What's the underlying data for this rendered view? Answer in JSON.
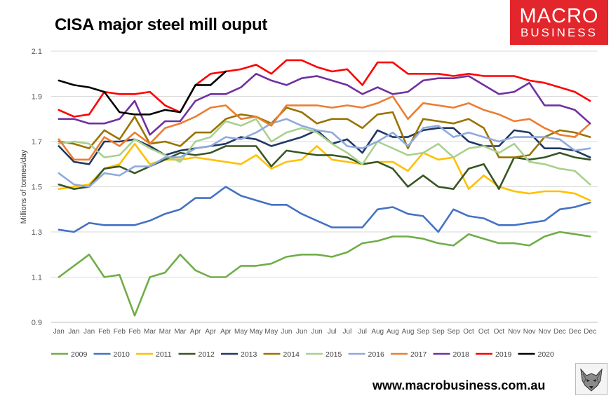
{
  "brand": {
    "line1": "MACRO",
    "line2": "BUSINESS",
    "color": "#e3262c",
    "website": "www.macrobusiness.com.au"
  },
  "wolf_logo": "wolf-icon",
  "chart_data": {
    "type": "line",
    "title": "CISA major steel mill ouput",
    "xlabel": "",
    "ylabel": "Millions of tonnes/day",
    "ylim": [
      0.9,
      2.1
    ],
    "yticks": [
      0.9,
      1.1,
      1.3,
      1.5,
      1.7,
      1.9,
      2.1
    ],
    "ytick_labels": [
      "0.9",
      "1.1",
      "1.3",
      "1.5",
      "1.7",
      "1.9",
      "2.1"
    ],
    "grid": true,
    "legend_position": "bottom",
    "categories": [
      "Jan",
      "Jan",
      "Jan",
      "Feb",
      "Feb",
      "Feb",
      "Mar",
      "Mar",
      "Mar",
      "Apr",
      "Apr",
      "Apr",
      "May",
      "May",
      "May",
      "Jun",
      "Jun",
      "Jun",
      "Jul",
      "Jul",
      "Jul",
      "Aug",
      "Aug",
      "Aug",
      "Sep",
      "Sep",
      "Sep",
      "Oct",
      "Oct",
      "Oct",
      "Nov",
      "Nov",
      "Nov",
      "Dec",
      "Dec",
      "Dec"
    ],
    "series": [
      {
        "name": "2009",
        "color": "#70ad47",
        "values": [
          1.1,
          1.15,
          1.2,
          1.1,
          1.11,
          0.93,
          1.1,
          1.12,
          1.2,
          1.13,
          1.1,
          1.1,
          1.15,
          1.15,
          1.16,
          1.19,
          1.2,
          1.2,
          1.19,
          1.21,
          1.25,
          1.26,
          1.28,
          1.28,
          1.27,
          1.25,
          1.24,
          1.29,
          1.27,
          1.25,
          1.25,
          1.24,
          1.28,
          1.3,
          1.29,
          1.28
        ]
      },
      {
        "name": "2010",
        "color": "#4472c4",
        "values": [
          1.31,
          1.3,
          1.34,
          1.33,
          1.33,
          1.33,
          1.35,
          1.38,
          1.4,
          1.45,
          1.45,
          1.5,
          1.46,
          1.44,
          1.42,
          1.42,
          1.38,
          1.35,
          1.32,
          1.32,
          1.32,
          1.4,
          1.41,
          1.38,
          1.37,
          1.3,
          1.4,
          1.37,
          1.36,
          1.33,
          1.33,
          1.34,
          1.35,
          1.4,
          1.41,
          1.43
        ]
      },
      {
        "name": "2011",
        "color": "#ffc000",
        "values": [
          1.49,
          1.5,
          1.51,
          1.58,
          1.6,
          1.69,
          1.6,
          1.62,
          1.62,
          1.63,
          1.62,
          1.61,
          1.6,
          1.64,
          1.58,
          1.61,
          1.62,
          1.68,
          1.62,
          1.61,
          1.6,
          1.61,
          1.61,
          1.57,
          1.65,
          1.62,
          1.63,
          1.49,
          1.55,
          1.5,
          1.48,
          1.47,
          1.48,
          1.48,
          1.47,
          1.44
        ]
      },
      {
        "name": "2012",
        "color": "#375623",
        "values": [
          1.51,
          1.49,
          1.5,
          1.58,
          1.59,
          1.56,
          1.59,
          1.62,
          1.65,
          1.64,
          1.65,
          1.68,
          1.68,
          1.68,
          1.59,
          1.66,
          1.65,
          1.64,
          1.64,
          1.63,
          1.6,
          1.61,
          1.58,
          1.5,
          1.55,
          1.5,
          1.49,
          1.58,
          1.6,
          1.49,
          1.63,
          1.62,
          1.63,
          1.65,
          1.63,
          1.62
        ]
      },
      {
        "name": "2013",
        "color": "#203864",
        "values": [
          1.68,
          1.61,
          1.6,
          1.7,
          1.7,
          1.71,
          1.68,
          1.64,
          1.66,
          1.67,
          1.68,
          1.69,
          1.72,
          1.71,
          1.68,
          1.7,
          1.72,
          1.75,
          1.69,
          1.71,
          1.65,
          1.75,
          1.72,
          1.72,
          1.75,
          1.76,
          1.76,
          1.7,
          1.68,
          1.68,
          1.75,
          1.74,
          1.67,
          1.67,
          1.66,
          1.63
        ]
      },
      {
        "name": "2014",
        "color": "#997300",
        "values": [
          1.7,
          1.69,
          1.67,
          1.75,
          1.71,
          1.81,
          1.69,
          1.7,
          1.68,
          1.74,
          1.74,
          1.8,
          1.82,
          1.81,
          1.78,
          1.85,
          1.83,
          1.78,
          1.8,
          1.8,
          1.76,
          1.82,
          1.83,
          1.67,
          1.8,
          1.79,
          1.78,
          1.8,
          1.76,
          1.63,
          1.63,
          1.64,
          1.72,
          1.75,
          1.74,
          1.72
        ]
      },
      {
        "name": "2015",
        "color": "#a9d18e",
        "values": [
          1.69,
          1.7,
          1.69,
          1.63,
          1.64,
          1.71,
          1.67,
          1.64,
          1.61,
          1.7,
          1.72,
          1.79,
          1.77,
          1.8,
          1.7,
          1.74,
          1.76,
          1.74,
          1.69,
          1.65,
          1.6,
          1.7,
          1.67,
          1.64,
          1.65,
          1.69,
          1.63,
          1.67,
          1.68,
          1.65,
          1.69,
          1.61,
          1.6,
          1.58,
          1.57,
          1.51
        ]
      },
      {
        "name": "2016",
        "color": "#8faadc",
        "values": [
          1.56,
          1.51,
          1.5,
          1.56,
          1.55,
          1.59,
          1.59,
          1.63,
          1.63,
          1.67,
          1.68,
          1.72,
          1.71,
          1.74,
          1.78,
          1.8,
          1.77,
          1.75,
          1.74,
          1.68,
          1.67,
          1.7,
          1.74,
          1.68,
          1.76,
          1.77,
          1.72,
          1.74,
          1.72,
          1.7,
          1.72,
          1.72,
          1.72,
          1.71,
          1.66,
          1.67
        ]
      },
      {
        "name": "2017",
        "color": "#ed7d31",
        "values": [
          1.71,
          1.62,
          1.62,
          1.72,
          1.68,
          1.74,
          1.69,
          1.76,
          1.78,
          1.81,
          1.85,
          1.86,
          1.8,
          1.81,
          1.77,
          1.86,
          1.86,
          1.86,
          1.85,
          1.86,
          1.85,
          1.87,
          1.9,
          1.8,
          1.87,
          1.86,
          1.85,
          1.87,
          1.84,
          1.82,
          1.79,
          1.8,
          1.76,
          1.73,
          1.72,
          1.78
        ]
      },
      {
        "name": "2018",
        "color": "#7030a0",
        "values": [
          1.8,
          1.8,
          1.78,
          1.78,
          1.8,
          1.88,
          1.73,
          1.79,
          1.79,
          1.88,
          1.91,
          1.91,
          1.94,
          2.0,
          1.97,
          1.95,
          1.98,
          1.99,
          1.97,
          1.95,
          1.91,
          1.94,
          1.91,
          1.92,
          1.97,
          1.98,
          1.98,
          1.99,
          1.95,
          1.91,
          1.92,
          1.96,
          1.86,
          1.86,
          1.84,
          1.78
        ]
      },
      {
        "name": "2019",
        "color": "#ff0000",
        "values": [
          1.84,
          1.81,
          1.82,
          1.92,
          1.91,
          1.91,
          1.92,
          1.86,
          1.83,
          1.95,
          2.0,
          2.01,
          2.02,
          2.04,
          2.0,
          2.06,
          2.06,
          2.03,
          2.01,
          2.02,
          1.95,
          2.05,
          2.05,
          2.0,
          2.0,
          2.0,
          1.99,
          2.0,
          1.99,
          1.99,
          1.99,
          1.97,
          1.96,
          1.94,
          1.92,
          1.88
        ]
      },
      {
        "name": "2020",
        "color": "#000000",
        "values": [
          1.97,
          1.95,
          1.94,
          1.92,
          1.83,
          1.82,
          1.82,
          1.84,
          1.83,
          1.95,
          1.95,
          2.01,
          null,
          null,
          null,
          null,
          null,
          null,
          null,
          null,
          null,
          null,
          null,
          null,
          null,
          null,
          null,
          null,
          null,
          null,
          null,
          null,
          null,
          null,
          null,
          null
        ]
      }
    ]
  }
}
